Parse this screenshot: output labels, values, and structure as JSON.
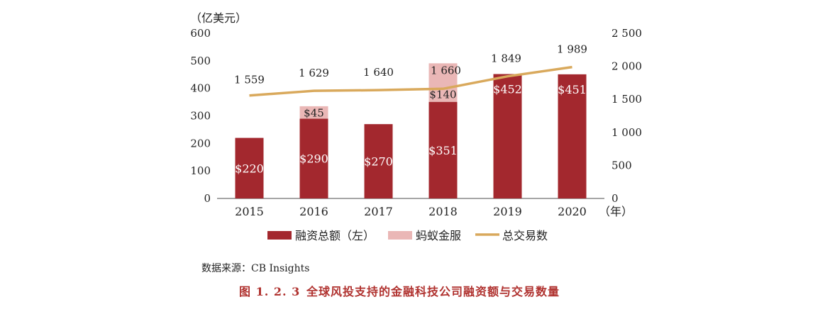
{
  "chart_data": {
    "type": "bar",
    "left_axis_unit": "（亿美元）",
    "x_unit": "（年）",
    "categories": [
      "2015",
      "2016",
      "2017",
      "2018",
      "2019",
      "2020"
    ],
    "ylim_left": [
      0,
      600
    ],
    "yticks_left": [
      "0",
      "100",
      "200",
      "300",
      "400",
      "500",
      "600"
    ],
    "ylim_right": [
      0,
      2500
    ],
    "yticks_right": [
      "0",
      "500",
      "1 000",
      "1 500",
      "2 000",
      "2 500"
    ],
    "series": [
      {
        "name": "融资总额（左）",
        "type": "bar",
        "axis": "left",
        "values": [
          220,
          290,
          270,
          351,
          452,
          451
        ],
        "labels": [
          "$220",
          "$290",
          "$270",
          "$351",
          "$452",
          "$451"
        ],
        "color": "#a3282e"
      },
      {
        "name": "蚂蚁金服",
        "type": "bar",
        "axis": "left",
        "stacked_on": "融资总额（左）",
        "values": [
          null,
          45,
          null,
          140,
          null,
          null
        ],
        "labels": [
          "",
          "$45",
          "",
          "$140",
          "",
          ""
        ],
        "color": "#eab7b6"
      },
      {
        "name": "总交易数",
        "type": "line",
        "axis": "right",
        "values": [
          1559,
          1629,
          1640,
          1660,
          1849,
          1989
        ],
        "labels": [
          "1 559",
          "1 629",
          "1 640",
          "1 660",
          "1 849",
          "1 989"
        ],
        "color": "#d9a95c"
      }
    ],
    "legend_position": "bottom",
    "grid": false
  },
  "source": "数据来源：CB Insights",
  "figure": {
    "number": "图 1. 2. 3",
    "caption": "全球风投支持的金融科技公司融资额与交易数量"
  },
  "colors": {
    "caption": "#b0322f",
    "axis": "#333333"
  }
}
